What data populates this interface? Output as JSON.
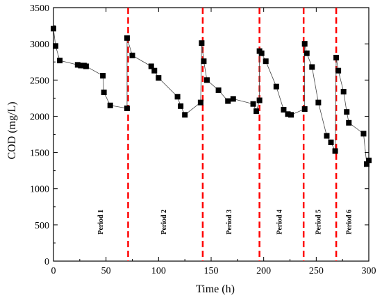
{
  "chart_data": {
    "type": "scatter",
    "xlabel": "Time (h)",
    "ylabel": "COD (mg/L)",
    "xlim": [
      0,
      300
    ],
    "ylim": [
      0,
      3500
    ],
    "xticks": [
      0,
      50,
      100,
      150,
      200,
      250,
      300
    ],
    "yticks": [
      0,
      500,
      1000,
      1500,
      2000,
      2500,
      3000,
      3500
    ],
    "grid": false,
    "marker_color": "#000000",
    "divider_color": "#ff0000",
    "series": [
      {
        "values_x": [
          0,
          2,
          6,
          23,
          26,
          29,
          31,
          47,
          48,
          54,
          70,
          70,
          75,
          93,
          96,
          100,
          118,
          121,
          125,
          140,
          141,
          143,
          146,
          157,
          166,
          171,
          190,
          193,
          196,
          196,
          198,
          202,
          212,
          219,
          223,
          226,
          239,
          239,
          241,
          246,
          252,
          260,
          264,
          268,
          269,
          271,
          276,
          279,
          281,
          295,
          298,
          300
        ],
        "values_y": [
          3210,
          2970,
          2770,
          2710,
          2700,
          2700,
          2690,
          2560,
          2330,
          2150,
          2110,
          3080,
          2840,
          2690,
          2630,
          2530,
          2270,
          2140,
          2020,
          2190,
          3010,
          2760,
          2500,
          2360,
          2210,
          2240,
          2170,
          2070,
          2220,
          2900,
          2870,
          2760,
          2410,
          2090,
          2030,
          2020,
          2100,
          3000,
          2870,
          2680,
          2190,
          1730,
          1640,
          1520,
          2810,
          2630,
          2340,
          2060,
          1910,
          1760,
          1340,
          1390
        ]
      }
    ],
    "period_dividers": [
      71,
      142,
      196,
      238,
      269
    ],
    "period_labels": [
      {
        "text": "Period 1",
        "x": 47,
        "y": 540
      },
      {
        "text": "Period 2",
        "x": 107,
        "y": 540
      },
      {
        "text": "Period 3",
        "x": 169,
        "y": 540
      },
      {
        "text": "Period 4",
        "x": 217,
        "y": 540
      },
      {
        "text": "Period 5",
        "x": 254,
        "y": 540
      },
      {
        "text": "Period 6",
        "x": 283,
        "y": 540
      }
    ]
  }
}
